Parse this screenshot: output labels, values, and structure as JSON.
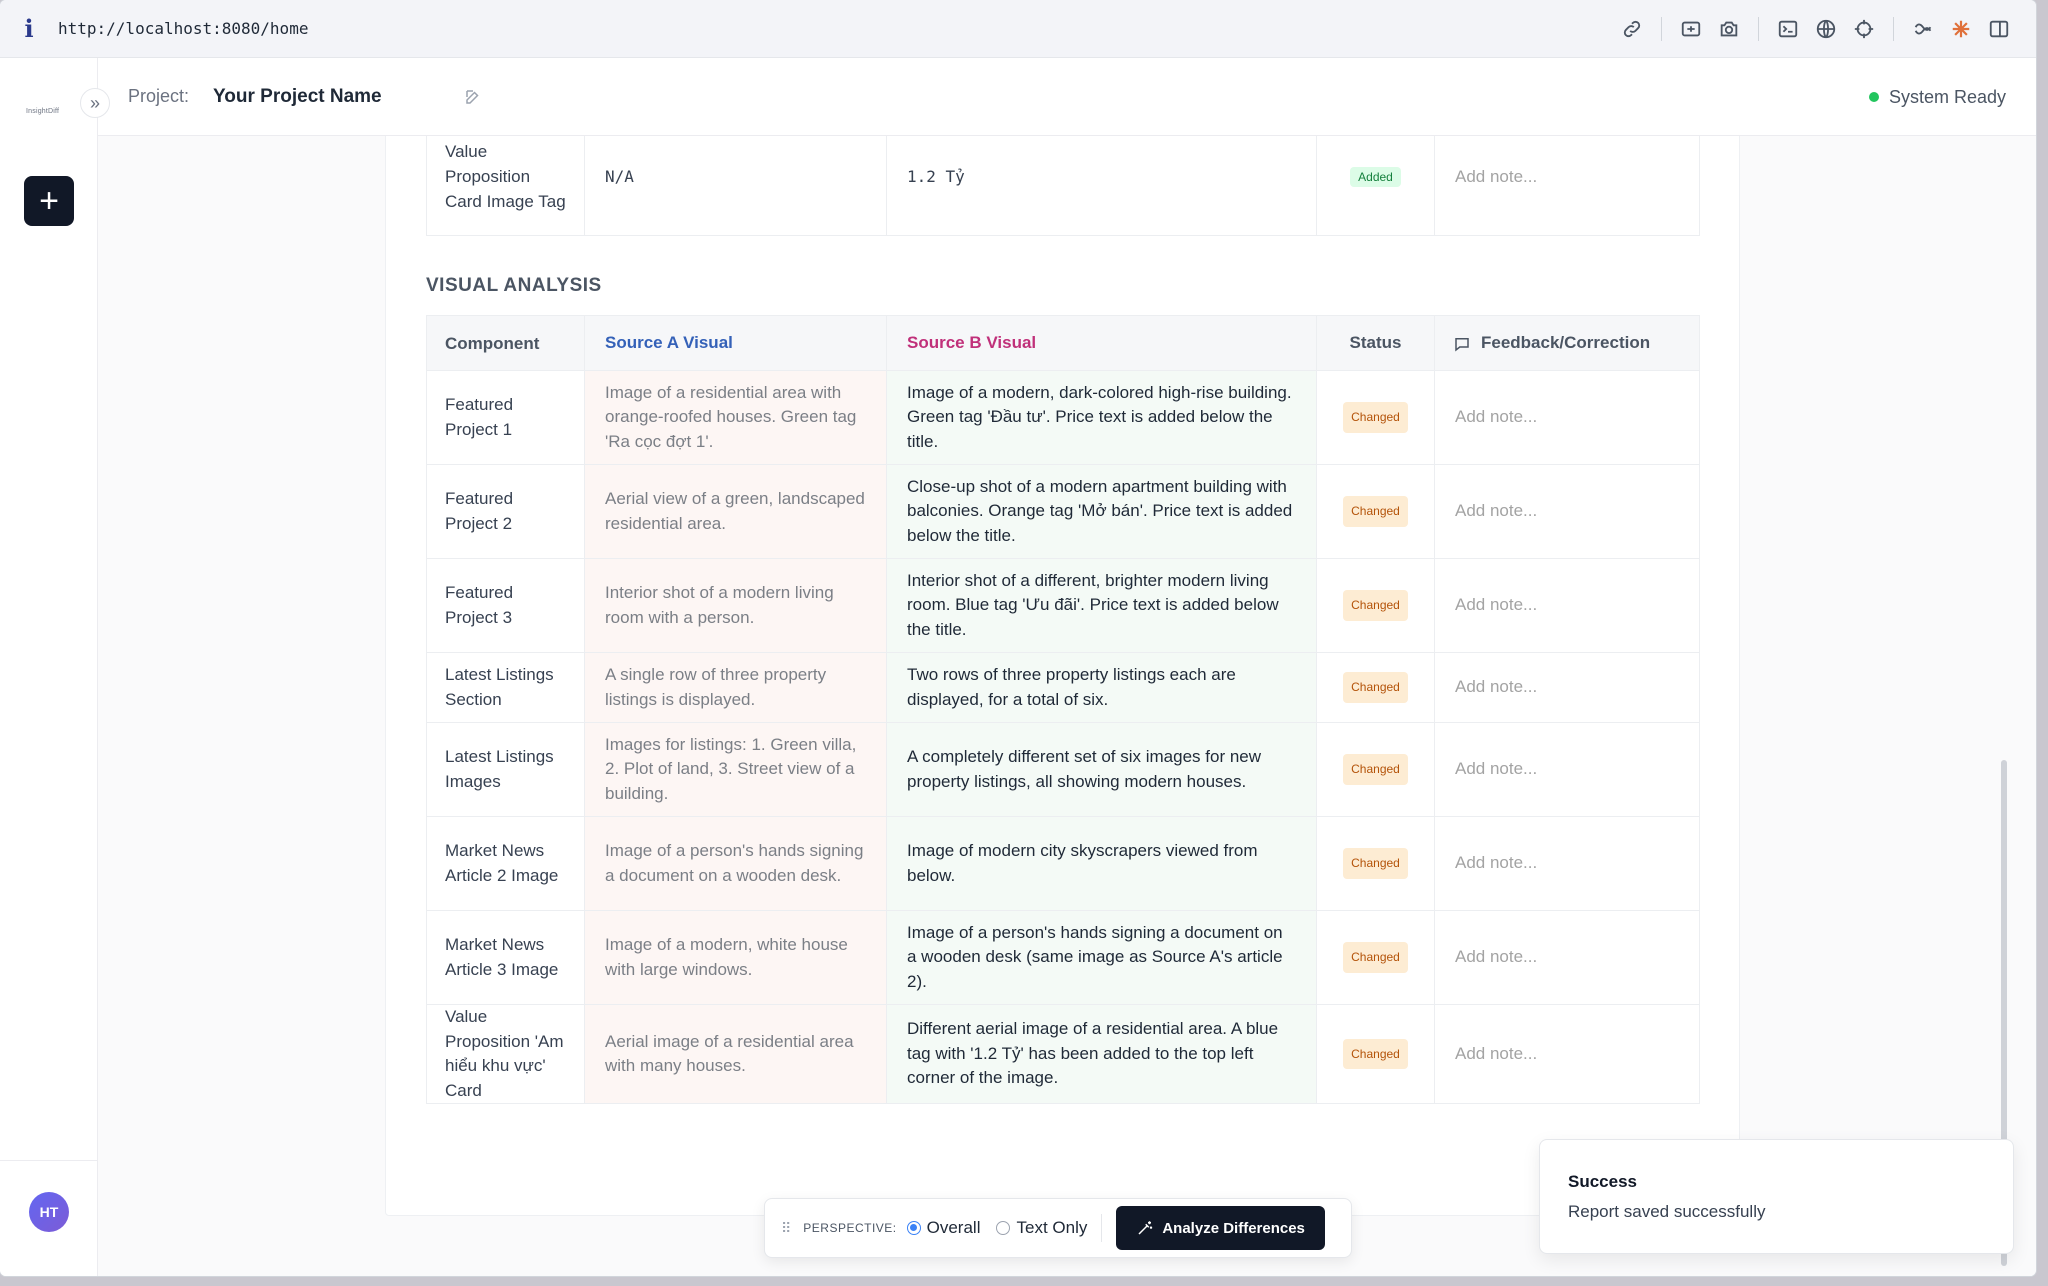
{
  "browser": {
    "url": "http://localhost:8080/home",
    "info_icon": "i"
  },
  "sidebar": {
    "logo_text": "InsightDiff",
    "new_label": "+",
    "user_initials": "HT"
  },
  "header": {
    "project_label": "Project:",
    "project_name": "Your Project Name",
    "status": "System Ready"
  },
  "top_table": {
    "row": {
      "component": "Value Proposition Card Image Tag",
      "a": "N/A",
      "b": "1.2 Tỷ",
      "status": "Added",
      "note_placeholder": "Add note..."
    }
  },
  "visual": {
    "title": "VISUAL ANALYSIS",
    "headers": {
      "component": "Component",
      "a": "Source A Visual",
      "b": "Source B Visual",
      "status": "Status",
      "feedback": "Feedback/Correction"
    },
    "rows": [
      {
        "component": "Featured Project 1",
        "a": "Image of a residential area with orange-roofed houses. Green tag 'Ra cọc đợt 1'.",
        "b": "Image of a modern, dark-colored high-rise building. Green tag 'Đầu tư'. Price text is added below the title.",
        "status": "Changed",
        "note": "Add note..."
      },
      {
        "component": "Featured Project 2",
        "a": "Aerial view of a green, landscaped residential area.",
        "b": "Close-up shot of a modern apartment building with balconies. Orange tag 'Mở bán'. Price text is added below the title.",
        "status": "Changed",
        "note": "Add note..."
      },
      {
        "component": "Featured Project 3",
        "a": "Interior shot of a modern living room with a person.",
        "b": "Interior shot of a different, brighter modern living room. Blue tag 'Ưu đãi'. Price text is added below the title.",
        "status": "Changed",
        "note": "Add note..."
      },
      {
        "component": "Latest Listings Section",
        "a": "A single row of three property listings is displayed.",
        "b": "Two rows of three property listings each are displayed, for a total of six.",
        "status": "Changed",
        "note": "Add note..."
      },
      {
        "component": "Latest Listings Images",
        "a": "Images for listings: 1. Green villa, 2. Plot of land, 3. Street view of a building.",
        "b": "A completely different set of six images for new property listings, all showing modern houses.",
        "status": "Changed",
        "note": "Add note..."
      },
      {
        "component": "Market News Article 2 Image",
        "a": "Image of a person's hands signing a document on a wooden desk.",
        "b": "Image of modern city skyscrapers viewed from below.",
        "status": "Changed",
        "note": "Add note..."
      },
      {
        "component": "Market News Article 3 Image",
        "a": "Image of a modern, white house with large windows.",
        "b": "Image of a person's hands signing a document on a wooden desk (same image as Source A's article 2).",
        "status": "Changed",
        "note": "Add note..."
      },
      {
        "component": "Value Proposition 'Am hiểu khu vực' Card",
        "a": "Aerial image of a residential area with many houses.",
        "b": "Different aerial image of a residential area. A blue tag with '1.2 Tỷ' has been added to the top left corner of the image.",
        "status": "Changed",
        "note": "Add note..."
      }
    ]
  },
  "toolbar": {
    "perspective_label": "PERSPECTIVE:",
    "option_overall": "Overall",
    "option_text": "Text Only",
    "analyze_label": "Analyze Differences",
    "selected": "Overall"
  },
  "toast": {
    "title": "Success",
    "message": "Report saved successfully"
  },
  "colors": {
    "source_a": "#3461b8",
    "source_b": "#c0307a",
    "ready": "#22c55e",
    "changed_bg": "#fdecd3",
    "added_bg": "#dcfce7"
  }
}
